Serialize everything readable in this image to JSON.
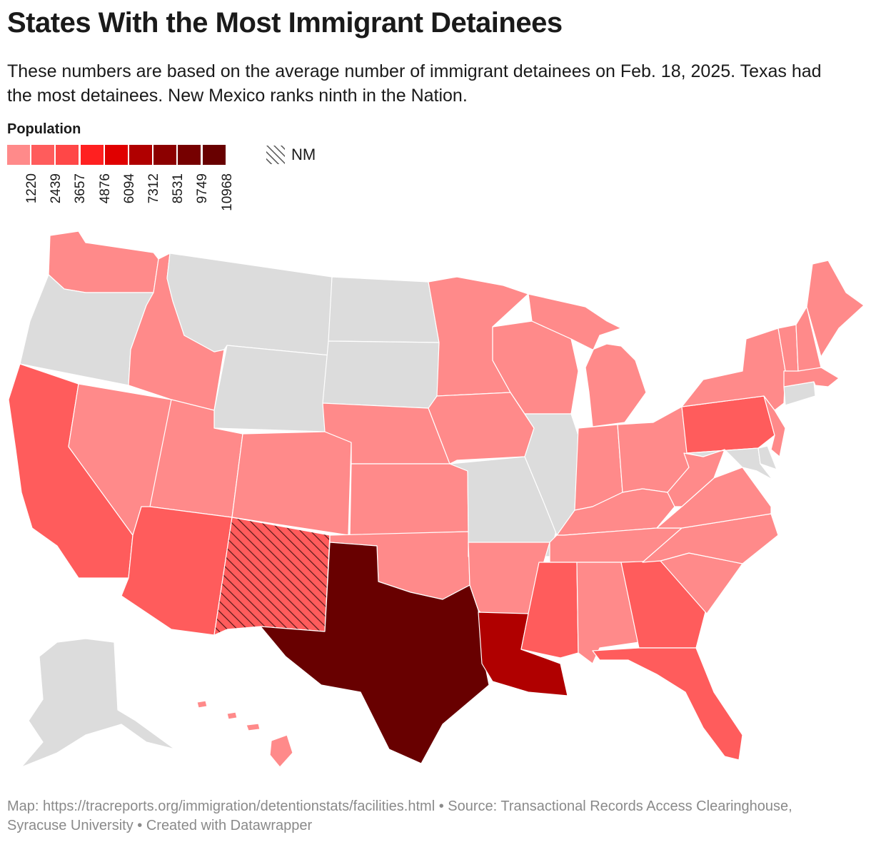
{
  "header": {
    "title": "States With the Most Immigrant Detainees",
    "subtitle": "These numbers are based on the average number of immigrant detainees on Feb. 18, 2025. Texas had the most detainees. New Mexico ranks ninth in the Nation."
  },
  "legend": {
    "title": "Population",
    "bins": [
      {
        "color": "#ff8a8a",
        "label": "1220"
      },
      {
        "color": "#ff5c5c",
        "label": "2439"
      },
      {
        "color": "#ff4747",
        "label": "3657"
      },
      {
        "color": "#ff2020",
        "label": "4876"
      },
      {
        "color": "#e00000",
        "label": "6094"
      },
      {
        "color": "#b00000",
        "label": "7312"
      },
      {
        "color": "#8c0000",
        "label": "8531"
      },
      {
        "color": "#760000",
        "label": "9749"
      },
      {
        "color": "#680000",
        "label": "10968"
      }
    ],
    "highlight_label": "NM"
  },
  "map": {
    "no_data_color": "#dcdcdc",
    "highlight_state": "NM",
    "states": [
      {
        "abbr": "WA",
        "category": "1220"
      },
      {
        "abbr": "OR",
        "category": "no data"
      },
      {
        "abbr": "CA",
        "category": "2439"
      },
      {
        "abbr": "NV",
        "category": "1220"
      },
      {
        "abbr": "ID",
        "category": "1220"
      },
      {
        "abbr": "MT",
        "category": "no data"
      },
      {
        "abbr": "WY",
        "category": "no data"
      },
      {
        "abbr": "UT",
        "category": "1220"
      },
      {
        "abbr": "AZ",
        "category": "2439"
      },
      {
        "abbr": "CO",
        "category": "1220"
      },
      {
        "abbr": "NM",
        "category": "2439"
      },
      {
        "abbr": "ND",
        "category": "no data"
      },
      {
        "abbr": "SD",
        "category": "no data"
      },
      {
        "abbr": "NE",
        "category": "1220"
      },
      {
        "abbr": "KS",
        "category": "1220"
      },
      {
        "abbr": "OK",
        "category": "1220"
      },
      {
        "abbr": "TX",
        "category": "10968"
      },
      {
        "abbr": "MN",
        "category": "1220"
      },
      {
        "abbr": "IA",
        "category": "1220"
      },
      {
        "abbr": "MO",
        "category": "no data"
      },
      {
        "abbr": "AR",
        "category": "1220"
      },
      {
        "abbr": "LA",
        "category": "7312"
      },
      {
        "abbr": "WI",
        "category": "1220"
      },
      {
        "abbr": "IL",
        "category": "no data"
      },
      {
        "abbr": "MI",
        "category": "1220"
      },
      {
        "abbr": "IN",
        "category": "1220"
      },
      {
        "abbr": "OH",
        "category": "1220"
      },
      {
        "abbr": "KY",
        "category": "1220"
      },
      {
        "abbr": "TN",
        "category": "1220"
      },
      {
        "abbr": "MS",
        "category": "2439"
      },
      {
        "abbr": "AL",
        "category": "1220"
      },
      {
        "abbr": "GA",
        "category": "2439"
      },
      {
        "abbr": "FL",
        "category": "2439"
      },
      {
        "abbr": "SC",
        "category": "1220"
      },
      {
        "abbr": "NC",
        "category": "1220"
      },
      {
        "abbr": "VA",
        "category": "1220"
      },
      {
        "abbr": "WV",
        "category": "1220"
      },
      {
        "abbr": "PA",
        "category": "2439"
      },
      {
        "abbr": "NY",
        "category": "1220"
      },
      {
        "abbr": "NJ",
        "category": "1220"
      },
      {
        "abbr": "DE",
        "category": "no data"
      },
      {
        "abbr": "MD",
        "category": "no data"
      },
      {
        "abbr": "CT",
        "category": "no data"
      },
      {
        "abbr": "MA",
        "category": "1220"
      },
      {
        "abbr": "VT",
        "category": "1220"
      },
      {
        "abbr": "NH",
        "category": "1220"
      },
      {
        "abbr": "ME",
        "category": "1220"
      },
      {
        "abbr": "AK",
        "category": "no data"
      },
      {
        "abbr": "HI",
        "category": "1220"
      }
    ]
  },
  "footer": {
    "text": "Map: https://tracreports.org/immigration/detentionstats/facilities.html • Source: Transactional Records Access Clearinghouse, Syracuse University • Created with Datawrapper"
  }
}
